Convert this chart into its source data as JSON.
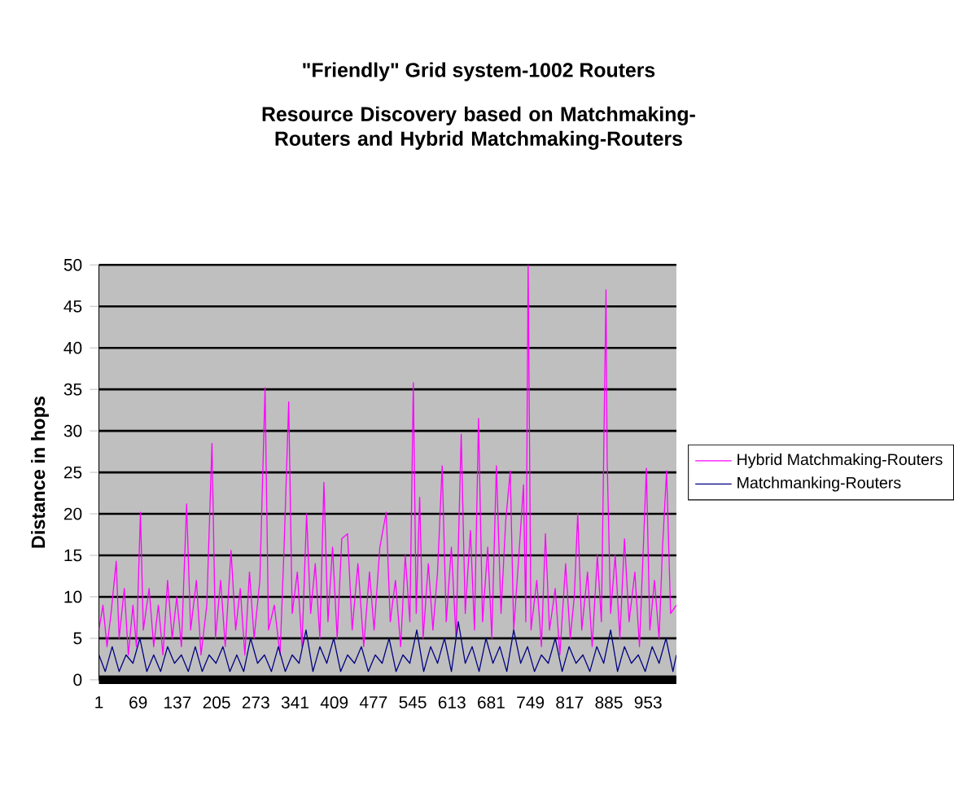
{
  "chart_data": {
    "type": "line",
    "title": "\"Friendly\" Grid system-1002 Routers",
    "subtitle": "Resource Discovery based on Matchmaking-Routers and Hybrid Matchmaking-Routers",
    "ylabel": "Distance in hops",
    "xlim": [
      1,
      1002
    ],
    "xticks": [
      1,
      69,
      137,
      205,
      273,
      341,
      409,
      477,
      545,
      613,
      681,
      749,
      817,
      885,
      953
    ],
    "ylim": [
      0,
      50
    ],
    "yticks": [
      0,
      5,
      10,
      15,
      20,
      25,
      30,
      35,
      40,
      45,
      50
    ],
    "grid": "y",
    "legend": "right",
    "marker": "none",
    "line_style": "solid",
    "series": [
      {
        "name": "Hybrid Matchmaking-Routers",
        "color": "#ff00ff",
        "x": [
          1,
          8,
          15,
          22,
          31,
          36,
          45,
          52,
          60,
          66,
          73,
          78,
          88,
          96,
          104,
          112,
          120,
          128,
          136,
          144,
          153,
          160,
          170,
          178,
          188,
          197,
          203,
          212,
          220,
          230,
          238,
          246,
          254,
          262,
          270,
          280,
          289,
          295,
          305,
          315,
          322,
          330,
          336,
          345,
          353,
          361,
          368,
          376,
          384,
          391,
          398,
          406,
          414,
          422,
          432,
          440,
          450,
          460,
          470,
          478,
          488,
          499,
          506,
          515,
          524,
          532,
          540,
          546,
          551,
          557,
          563,
          572,
          580,
          588,
          596,
          603,
          612,
          620,
          629,
          636,
          645,
          652,
          659,
          666,
          675,
          682,
          690,
          698,
          706,
          714,
          720,
          728,
          737,
          741,
          745,
          750,
          760,
          768,
          775,
          782,
          792,
          800,
          810,
          818,
          825,
          831,
          838,
          848,
          856,
          865,
          872,
          880,
          882,
          888,
          896,
          904,
          912,
          920,
          930,
          938,
          950,
          956,
          964,
          972,
          978,
          985,
          992,
          1002
        ],
        "values": [
          6,
          9,
          4,
          8,
          14.3,
          5,
          11,
          3,
          9,
          4,
          20.2,
          6,
          11,
          4,
          9,
          3,
          12,
          5,
          10,
          4,
          21.2,
          6,
          12,
          3,
          9,
          28.5,
          5,
          12,
          4,
          15.6,
          6,
          11,
          3,
          13,
          5,
          12,
          35.2,
          6,
          9,
          3,
          16,
          33.5,
          8,
          13,
          4,
          20,
          8,
          14,
          5,
          23.8,
          7,
          16,
          5,
          17,
          17.6,
          6,
          14,
          4,
          13,
          6,
          16,
          20.2,
          7,
          12,
          4,
          15,
          7,
          35.8,
          8,
          22,
          5,
          14,
          6,
          13,
          25.8,
          7,
          16,
          5,
          29.6,
          8,
          18,
          6,
          31.5,
          7,
          16,
          5,
          25.8,
          8,
          19,
          25.2,
          6,
          14,
          23.5,
          7,
          50,
          6,
          12,
          4,
          17.6,
          6,
          11,
          3,
          14,
          5,
          10,
          20,
          6,
          13,
          4,
          15,
          7,
          47,
          26.5,
          8,
          15,
          5,
          17,
          7,
          13,
          4,
          25.5,
          6,
          12,
          5,
          16,
          25.2,
          8,
          9
        ]
      },
      {
        "name": "Matchmanking-Routers",
        "color": "#000080",
        "x": [
          1,
          12,
          24,
          36,
          48,
          60,
          72,
          84,
          96,
          108,
          120,
          132,
          144,
          156,
          168,
          180,
          192,
          204,
          216,
          228,
          240,
          252,
          264,
          276,
          288,
          300,
          312,
          324,
          336,
          348,
          360,
          372,
          384,
          396,
          408,
          420,
          432,
          444,
          456,
          468,
          480,
          492,
          504,
          516,
          528,
          540,
          552,
          564,
          576,
          588,
          600,
          612,
          624,
          636,
          648,
          660,
          672,
          684,
          696,
          708,
          720,
          732,
          744,
          756,
          768,
          780,
          792,
          804,
          816,
          828,
          840,
          852,
          864,
          876,
          888,
          900,
          912,
          924,
          936,
          948,
          960,
          972,
          984,
          996,
          1002
        ],
        "values": [
          3,
          1,
          4,
          1,
          3,
          2,
          5,
          1,
          3,
          1,
          4,
          2,
          3,
          1,
          4,
          1,
          3,
          2,
          4,
          1,
          3,
          1,
          5,
          2,
          3,
          1,
          4,
          1,
          3,
          2,
          6,
          1,
          4,
          2,
          5,
          1,
          3,
          2,
          4,
          1,
          3,
          2,
          5,
          1,
          3,
          2,
          6,
          1,
          4,
          2,
          5,
          1,
          7,
          2,
          4,
          1,
          5,
          2,
          4,
          1,
          6,
          2,
          4,
          1,
          3,
          2,
          5,
          1,
          4,
          2,
          3,
          1,
          4,
          2,
          6,
          1,
          4,
          2,
          3,
          1,
          4,
          2,
          5,
          1,
          3
        ]
      }
    ]
  }
}
